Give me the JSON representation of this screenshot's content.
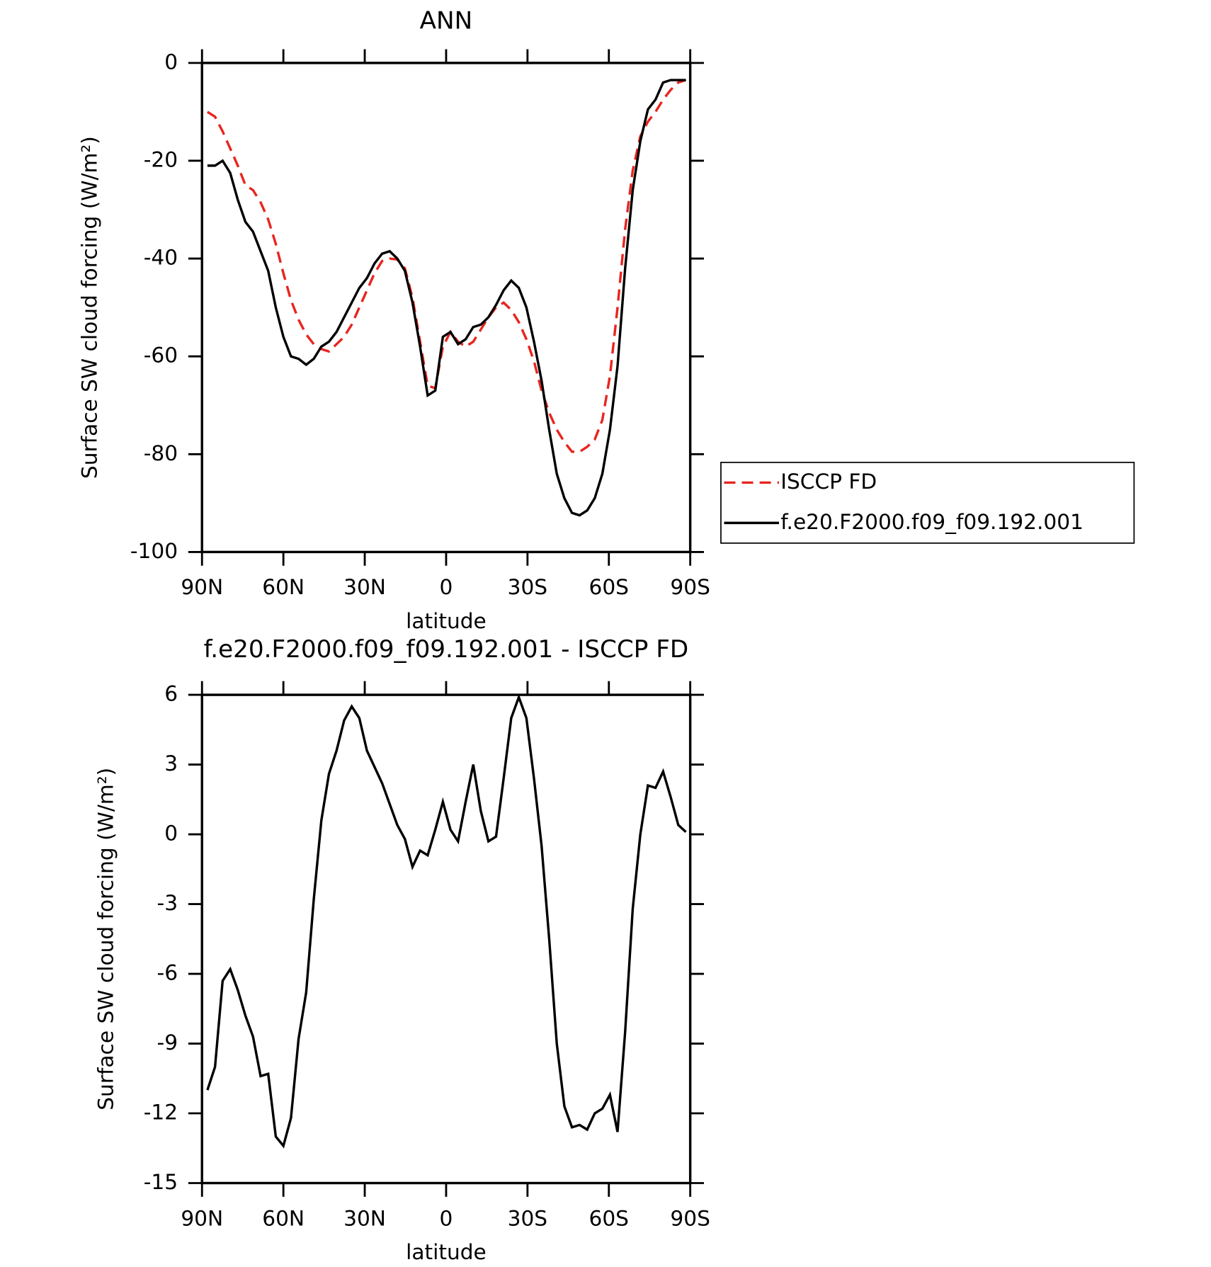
{
  "chart_data": [
    {
      "type": "line",
      "title": "ANN",
      "xlabel": "latitude",
      "ylabel": "Surface SW cloud forcing (W/m²)",
      "xlim": [
        90,
        -90
      ],
      "xticks": [
        {
          "value": 90,
          "label": "90N"
        },
        {
          "value": 60,
          "label": "60N"
        },
        {
          "value": 30,
          "label": "30N"
        },
        0,
        {
          "value": -30,
          "label": "30S"
        },
        {
          "value": -60,
          "label": "60S"
        },
        {
          "value": -90,
          "label": "90S"
        }
      ],
      "ylim": [
        -100,
        0
      ],
      "yticks": [
        -100,
        -80,
        -60,
        -40,
        -20,
        0
      ],
      "legend": "right",
      "x": [
        88,
        85.2,
        82.4,
        79.6,
        76.8,
        74,
        71.2,
        68.4,
        65.6,
        62.8,
        60,
        57.2,
        54.4,
        51.6,
        48.8,
        46,
        43.2,
        40.4,
        37.6,
        34.8,
        32,
        29.2,
        26.4,
        23.6,
        20.8,
        18,
        15.2,
        12.4,
        9.6,
        6.8,
        4,
        1.2,
        -1.6,
        -4.4,
        -7.2,
        -10,
        -12.8,
        -15.6,
        -18.4,
        -21.2,
        -24,
        -26.8,
        -29.6,
        -32.4,
        -35.2,
        -38,
        -40.8,
        -43.6,
        -46.4,
        -49.2,
        -52,
        -54.8,
        -57.6,
        -60.4,
        -63.2,
        -66,
        -68.8,
        -71.6,
        -74.4,
        -77.2,
        -80,
        -82.8,
        -85.6,
        -88.4
      ],
      "series": [
        {
          "name": "ISCCP FD",
          "color": "#e8251f",
          "style": "dashed",
          "values": [
            -10,
            -11,
            -14,
            -17.5,
            -21,
            -25,
            -26,
            -28.5,
            -32,
            -37,
            -43,
            -48.5,
            -52.5,
            -55.5,
            -57.5,
            -58.5,
            -59,
            -57.5,
            -56,
            -53.5,
            -50,
            -46.5,
            -43,
            -40.5,
            -40,
            -40.2,
            -42,
            -48,
            -57,
            -66,
            -66.5,
            -58,
            -55,
            -57,
            -58,
            -57,
            -54.5,
            -52,
            -50,
            -49,
            -50.5,
            -53,
            -56.5,
            -61,
            -67,
            -71.5,
            -75,
            -77.5,
            -79.5,
            -79.5,
            -78.5,
            -77,
            -73,
            -64,
            -50,
            -34,
            -22,
            -15,
            -12,
            -10,
            -7.5,
            -5.5,
            -4,
            -3.5
          ]
        },
        {
          "name": "f.e20.F2000.f09_f09.192.001",
          "color": "#000000",
          "style": "solid",
          "values": [
            -21,
            -21,
            -20,
            -22.5,
            -28,
            -32.5,
            -34.5,
            -38.5,
            -42.5,
            -50,
            -56,
            -60,
            -60.5,
            -61.7,
            -60.5,
            -58,
            -57,
            -55,
            -52,
            -49,
            -46,
            -44,
            -41,
            -39,
            -38.5,
            -40,
            -42.5,
            -49,
            -58,
            -68,
            -67,
            -56,
            -55,
            -57.5,
            -56.5,
            -54,
            -53.5,
            -52,
            -49.5,
            -46.5,
            -44.5,
            -46,
            -50,
            -57,
            -65,
            -75,
            -84,
            -89,
            -92,
            -92.5,
            -91.5,
            -89,
            -84,
            -75,
            -62,
            -42,
            -26,
            -16,
            -9.5,
            -7.5,
            -4,
            -3.5,
            -3.5,
            -3.5
          ]
        }
      ]
    },
    {
      "type": "line",
      "title": "f.e20.F2000.f09_f09.192.001 - ISCCP FD",
      "xlabel": "latitude",
      "ylabel": "Surface SW cloud forcing (W/m²)",
      "xlim": [
        90,
        -90
      ],
      "xticks": [
        {
          "value": 90,
          "label": "90N"
        },
        {
          "value": 60,
          "label": "60N"
        },
        {
          "value": 30,
          "label": "30N"
        },
        0,
        {
          "value": -30,
          "label": "30S"
        },
        {
          "value": -60,
          "label": "60S"
        },
        {
          "value": -90,
          "label": "90S"
        }
      ],
      "ylim": [
        -15,
        6
      ],
      "yticks": [
        -15,
        -12,
        -9,
        -6,
        -3,
        0,
        3,
        6
      ],
      "x": [
        88,
        85.2,
        82.4,
        79.6,
        76.8,
        74,
        71.2,
        68.4,
        65.6,
        62.8,
        60,
        57.2,
        54.4,
        51.6,
        48.8,
        46,
        43.2,
        40.4,
        37.6,
        34.8,
        32,
        29.2,
        26.4,
        23.6,
        20.8,
        18,
        15.2,
        12.4,
        9.6,
        6.8,
        4,
        1.2,
        -1.6,
        -4.4,
        -7.2,
        -10,
        -12.8,
        -15.6,
        -18.4,
        -21.2,
        -24,
        -26.8,
        -29.6,
        -32.4,
        -35.2,
        -38,
        -40.8,
        -43.6,
        -46.4,
        -49.2,
        -52,
        -54.8,
        -57.6,
        -60.4,
        -63.2,
        -66,
        -68.8,
        -71.6,
        -74.4,
        -77.2,
        -80,
        -82.8,
        -85.6,
        -88.4
      ],
      "series": [
        {
          "color": "#000000",
          "style": "solid",
          "values": [
            -11,
            -10,
            -6.3,
            -5.8,
            -6.7,
            -7.8,
            -8.7,
            -10.4,
            -10.3,
            -13,
            -13.4,
            -12.2,
            -8.8,
            -6.8,
            -2.8,
            0.6,
            2.6,
            3.6,
            4.9,
            5.5,
            5,
            3.6,
            2.9,
            2.2,
            1.3,
            0.4,
            -0.2,
            -1.4,
            -0.7,
            -0.9,
            0.2,
            1.4,
            0.2,
            -0.3,
            1.4,
            3,
            1,
            -0.3,
            -0.1,
            2.4,
            5,
            5.9,
            5,
            2.4,
            -0.5,
            -4.5,
            -9,
            -11.7,
            -12.6,
            -12.5,
            -12.7,
            -12,
            -11.8,
            -11.2,
            -12.8,
            -8.5,
            -3.2,
            0,
            2.1,
            2,
            2.7,
            1.6,
            0.4,
            0.1
          ]
        }
      ]
    }
  ]
}
